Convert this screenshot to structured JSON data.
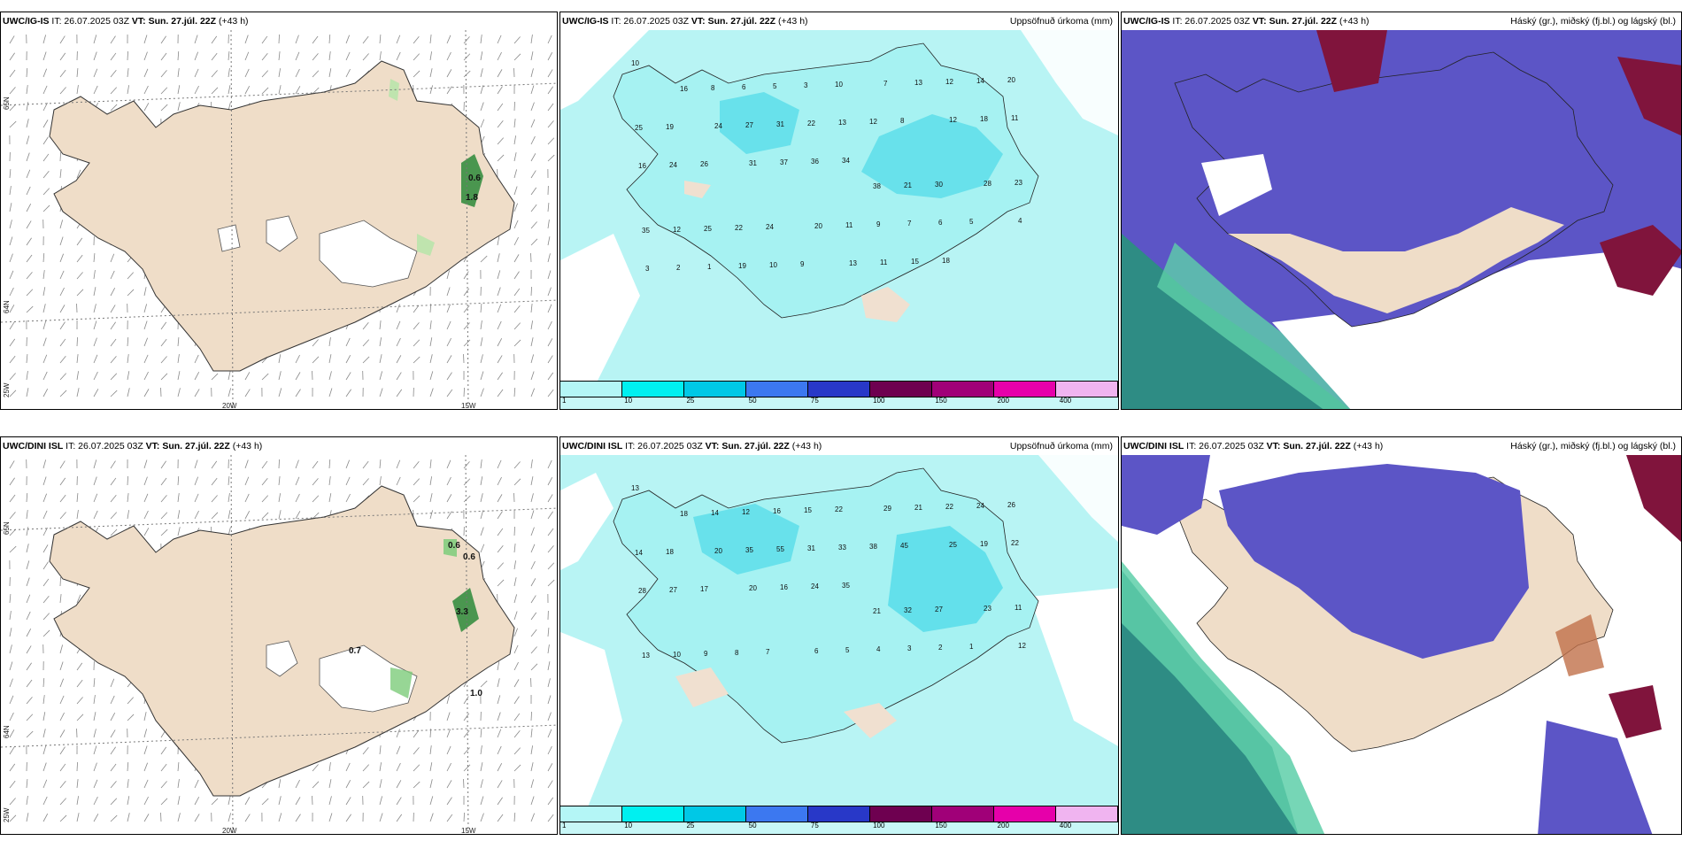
{
  "panels": [
    {
      "model": "UWC/IG-IS",
      "it": "IT: 26.07.2025 03Z",
      "vt_prefix": "VT:",
      "vt": "Sun. 27.júl. 22Z",
      "lead": "(+43 h)",
      "title": ""
    },
    {
      "model": "UWC/IG-IS",
      "it": "IT: 26.07.2025 03Z",
      "vt_prefix": "VT:",
      "vt": "Sun. 27.júl. 22Z",
      "lead": "(+43 h)",
      "title": "Uppsöfnuð úrkoma (mm)"
    },
    {
      "model": "UWC/IG-IS",
      "it": "IT: 26.07.2025 03Z",
      "vt_prefix": "VT:",
      "vt": "Sun. 27.júl. 22Z",
      "lead": "(+43 h)",
      "title": "Háský (gr.), miðský (fj.bl.) og lágský (bl.)"
    },
    {
      "model": "UWC/DINI ISL",
      "it": "IT: 26.07.2025 03Z",
      "vt_prefix": "VT:",
      "vt": "Sun. 27.júl. 22Z",
      "lead": "(+43 h)",
      "title": ""
    },
    {
      "model": "UWC/DINI ISL",
      "it": "IT: 26.07.2025 03Z",
      "vt_prefix": "VT:",
      "vt": "Sun. 27.júl. 22Z",
      "lead": "(+43 h)",
      "title": "Uppsöfnuð úrkoma (mm)"
    },
    {
      "model": "UWC/DINI ISL",
      "it": "IT: 26.07.2025 03Z",
      "vt_prefix": "VT:",
      "vt": "Sun. 27.júl. 22Z",
      "lead": "(+43 h)",
      "title": "Háský (gr.), miðský (fj.bl.) og lágský (bl.)"
    }
  ],
  "axis_labels": {
    "lon_20": "20W",
    "lon_15": "15W",
    "lat_65": "65N",
    "lat_64": "64N",
    "lon_25": "25W"
  },
  "legend": {
    "ticks": [
      "1",
      "10",
      "25",
      "50",
      "75",
      "100",
      "150",
      "200",
      "400"
    ],
    "colors": [
      "#b4f6f6",
      "#00f0f0",
      "#00c8e6",
      "#3c78f0",
      "#2838c8",
      "#6e0050",
      "#a00078",
      "#e600aa",
      "#f0b4f0"
    ]
  },
  "wind_values_top": [
    "0.6",
    "1.8"
  ],
  "wind_values_bottom": [
    "0.6",
    "0.6",
    "3.3",
    "0.7",
    "1.0"
  ],
  "precip_values_top": [
    "10",
    "16",
    "8",
    "6",
    "5",
    "3",
    "10",
    "7",
    "13",
    "12",
    "14",
    "20",
    "25",
    "19",
    "24",
    "27",
    "31",
    "22",
    "13",
    "12",
    "8",
    "12",
    "18",
    "11",
    "16",
    "24",
    "26",
    "31",
    "37",
    "36",
    "34",
    "38",
    "21",
    "30",
    "28",
    "23",
    "35",
    "12",
    "25",
    "22",
    "24",
    "20",
    "11",
    "9",
    "7",
    "6",
    "5",
    "4",
    "3",
    "2",
    "1",
    "19",
    "10",
    "9",
    "13",
    "11",
    "15",
    "18"
  ],
  "precip_values_bottom": [
    "13",
    "18",
    "14",
    "12",
    "16",
    "15",
    "22",
    "29",
    "21",
    "22",
    "24",
    "26",
    "14",
    "18",
    "20",
    "35",
    "55",
    "31",
    "33",
    "38",
    "45",
    "25",
    "19",
    "22",
    "28",
    "27",
    "17",
    "20",
    "16",
    "24",
    "35",
    "21",
    "32",
    "27",
    "23",
    "11",
    "13",
    "10",
    "9",
    "8",
    "7",
    "6",
    "5",
    "4",
    "3",
    "2",
    "1",
    "12"
  ]
}
